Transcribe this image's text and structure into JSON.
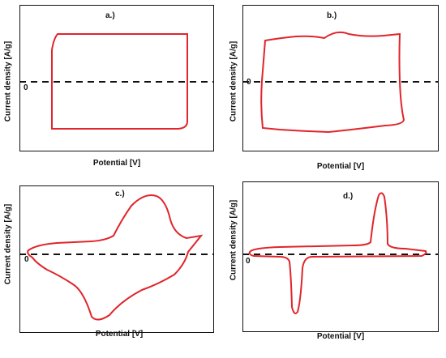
{
  "chart_data": [
    {
      "type": "line",
      "panel_label": "a.)",
      "xlabel": "Potential [V]",
      "ylabel": "Current density [A/g]",
      "zero_label": "0",
      "curve_color": "#e0252b",
      "shape": "ideal rectangular CV",
      "x": [
        0.1,
        0.9,
        0.9,
        0.86,
        0.05,
        0.05,
        0.1
      ],
      "y": [
        0.85,
        0.85,
        -0.85,
        -0.95,
        -0.95,
        0.7,
        0.85
      ]
    },
    {
      "type": "line",
      "panel_label": "b.)",
      "xlabel": "Potential [V]",
      "ylabel": "Current density [A/g]",
      "zero_label": "0",
      "curve_color": "#e0252b",
      "shape": "quasi-rectangular CV",
      "x": [
        0.05,
        0.15,
        0.35,
        0.5,
        0.7,
        0.92,
        0.91,
        0.9,
        0.7,
        0.4,
        0.15,
        0.05,
        0.04,
        0.05
      ],
      "y": [
        0.75,
        0.8,
        0.82,
        0.9,
        0.85,
        0.88,
        0.2,
        -0.8,
        -0.92,
        -0.95,
        -0.9,
        -0.88,
        0.0,
        0.75
      ]
    },
    {
      "type": "line",
      "panel_label": "c.)",
      "xlabel": "Potential [V]",
      "ylabel": "Current density [A/g]",
      "zero_label": "0",
      "curve_color": "#e0252b",
      "shape": "redox (battery-type) CV",
      "x": [
        0.0,
        0.1,
        0.35,
        0.48,
        0.55,
        0.6,
        0.67,
        0.72,
        0.85,
        1.0,
        0.9,
        0.75,
        0.6,
        0.45,
        0.38,
        0.33,
        0.2,
        0.0
      ],
      "y": [
        0.1,
        0.12,
        0.15,
        0.25,
        0.7,
        1.05,
        1.1,
        0.8,
        0.3,
        0.25,
        -0.2,
        -0.4,
        -0.5,
        -0.9,
        -1.2,
        -0.9,
        -0.35,
        0.1
      ]
    },
    {
      "type": "line",
      "panel_label": "d.)",
      "xlabel": "Potential [V]",
      "ylabel": "Current density [A/g]",
      "zero_label": "0",
      "curve_color": "#e0252b",
      "shape": "sharp-peak redox CV",
      "x": [
        0.0,
        0.3,
        0.55,
        0.62,
        0.66,
        0.7,
        0.75,
        1.0,
        0.9,
        0.35,
        0.3,
        0.25,
        0.2,
        0.0
      ],
      "y": [
        0.05,
        0.1,
        0.1,
        0.12,
        1.0,
        0.12,
        0.05,
        0.0,
        -0.05,
        -0.1,
        -1.1,
        -0.2,
        -0.1,
        0.05
      ]
    }
  ]
}
